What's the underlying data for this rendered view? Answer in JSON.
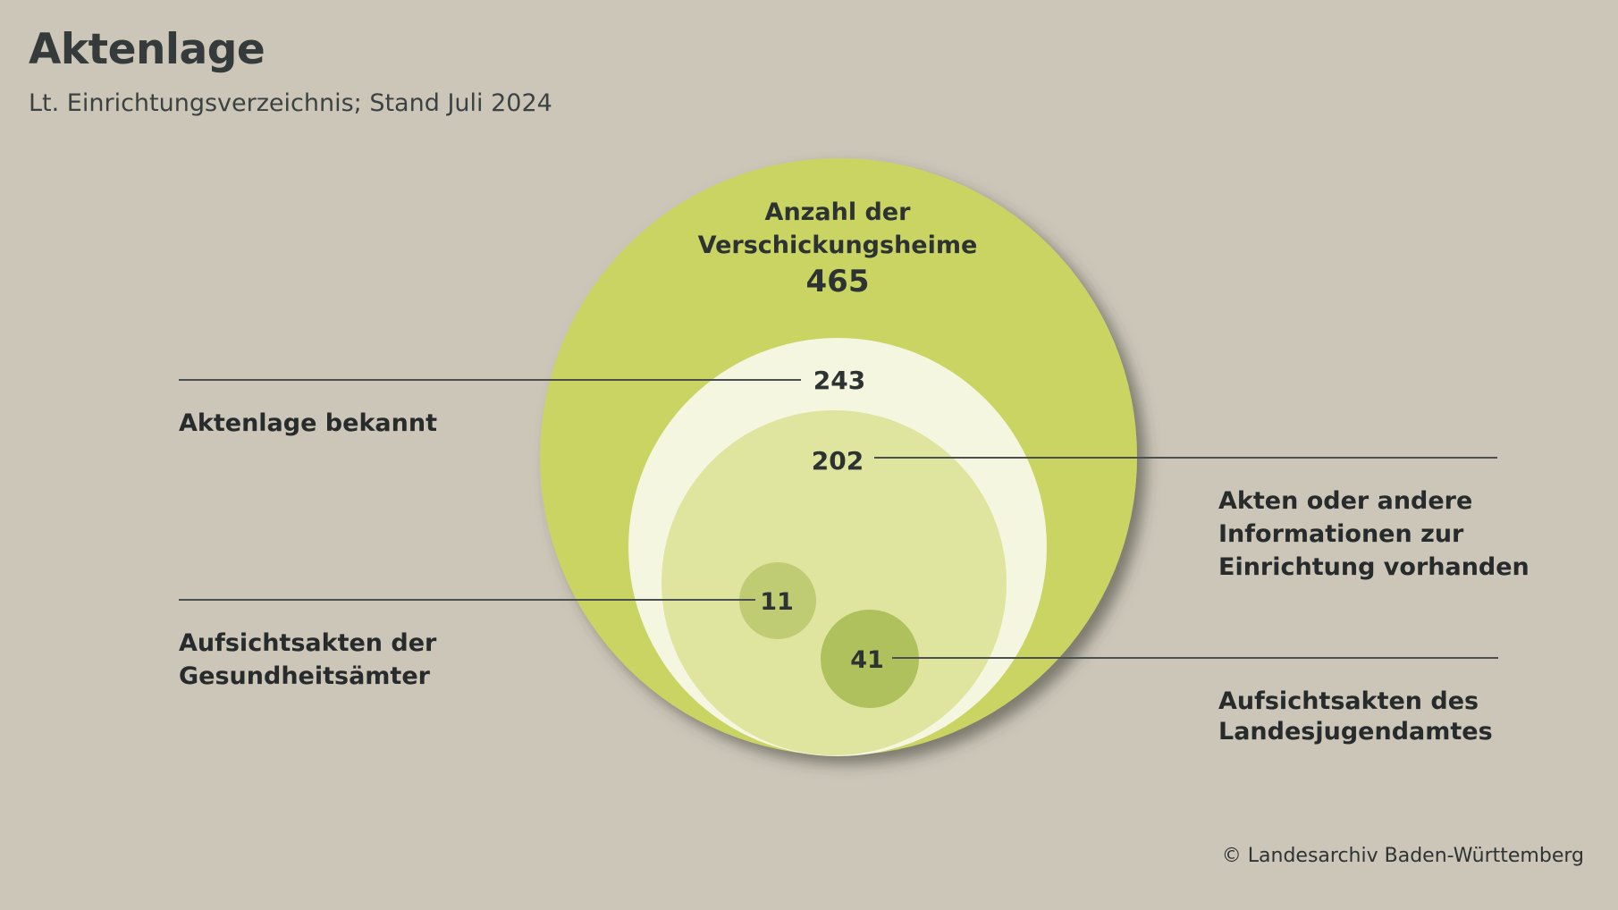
{
  "title": "Aktenlage",
  "subtitle": "Lt. Einrichtungsverzeichnis; Stand Juli 2024",
  "diagram": {
    "outer": {
      "label_line1": "Anzahl der",
      "label_line2": "Verschickungsheime",
      "value": "465",
      "color": "#c9d462"
    },
    "known": {
      "value": "243",
      "label": "Aktenlage bekannt",
      "color": "#f4f6df"
    },
    "available": {
      "value": "202",
      "label_line1": "Akten oder andere",
      "label_line2": "Informationen zur",
      "label_line3": "Einrichtung vorhanden",
      "color": "#dfe49e"
    },
    "health": {
      "value": "11",
      "label_line1": "Aufsichtsakten der",
      "label_line2": "Gesundheitsämter",
      "color": "#bfcc73"
    },
    "youth": {
      "value": "41",
      "label_line1": "Aufsichtsakten des",
      "label_line2": "Landesjugendamtes",
      "color": "#aec15d"
    }
  },
  "copyright": "© Landesarchiv Baden-Württemberg"
}
